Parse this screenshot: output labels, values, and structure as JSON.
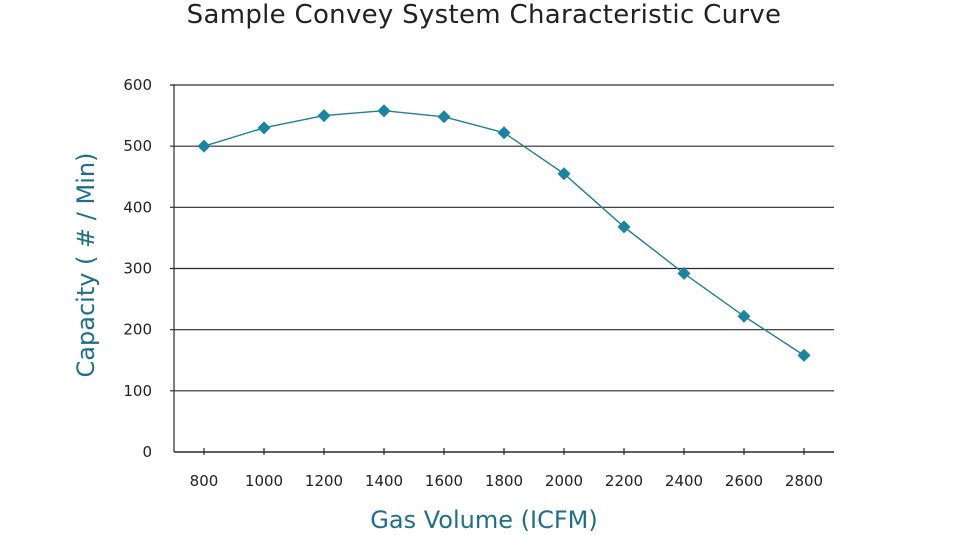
{
  "chart_data": {
    "type": "line",
    "title": "Sample Convey System Characteristic Curve",
    "xlabel": "Gas Volume (ICFM)",
    "ylabel": "Capacity ( # / Min)",
    "x_ticks": [
      "800",
      "1000",
      "1200",
      "1400",
      "1600",
      "1800",
      "2000",
      "2200",
      "2400",
      "2600",
      "2800"
    ],
    "y_ticks": [
      "0",
      "100",
      "200",
      "300",
      "400",
      "500",
      "600"
    ],
    "xlim": [
      700,
      2900
    ],
    "ylim": [
      0,
      600
    ],
    "grid": "horizontal",
    "series": [
      {
        "x": [
          800,
          1000,
          1200,
          1400,
          1600,
          1800,
          2000,
          2200,
          2400,
          2600,
          2800
        ],
        "y": [
          500,
          530,
          550,
          558,
          548,
          522,
          455,
          368,
          292,
          222,
          158
        ]
      }
    ],
    "colors": {
      "line": "#1f7f9c",
      "marker": "#1a84a3",
      "axis_title": "#1f6f8b",
      "grid": "#2a2a2a"
    }
  }
}
